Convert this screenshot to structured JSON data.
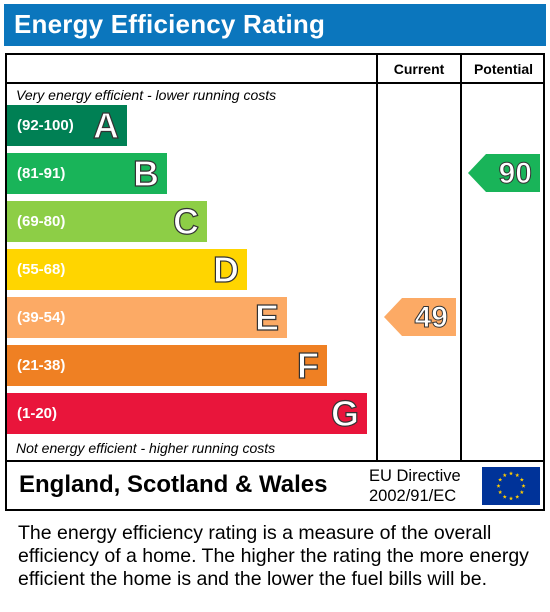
{
  "title": "Energy Efficiency Rating",
  "chart_data": {
    "type": "bar",
    "columns": {
      "current": "Current",
      "potential": "Potential"
    },
    "top_caption": "Very energy efficient - lower running costs",
    "bottom_caption": "Not energy efficient - higher running costs",
    "bands": [
      {
        "range": "(92-100)",
        "letter": "A",
        "color": "#008054"
      },
      {
        "range": "(81-91)",
        "letter": "B",
        "color": "#19b459"
      },
      {
        "range": "(69-80)",
        "letter": "C",
        "color": "#8dce46"
      },
      {
        "range": "(55-68)",
        "letter": "D",
        "color": "#ffd500"
      },
      {
        "range": "(39-54)",
        "letter": "E",
        "color": "#fcaa65"
      },
      {
        "range": "(21-38)",
        "letter": "F",
        "color": "#ef8023"
      },
      {
        "range": "(1-20)",
        "letter": "G",
        "color": "#e9153b"
      }
    ],
    "current": {
      "value": "49",
      "band": "E",
      "color": "#fcaa65"
    },
    "potential": {
      "value": "90",
      "band": "B",
      "color": "#19b459"
    }
  },
  "footer": {
    "region": "England, Scotland & Wales",
    "directive_line1": "EU Directive",
    "directive_line2": "2002/91/EC",
    "flag_icon": "eu-flag-icon",
    "flag_color": "#003399",
    "star_color": "#ffcc00"
  },
  "description": "The energy efficiency rating is a measure of the overall efficiency of a home. The higher the rating the more energy efficient the home is and the lower the fuel bills will be."
}
